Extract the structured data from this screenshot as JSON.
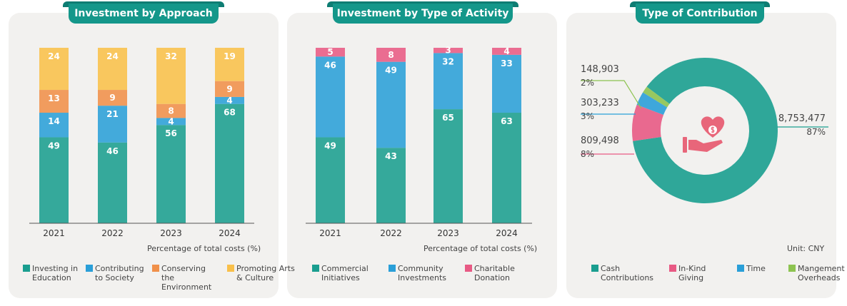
{
  "chart_data": [
    {
      "type": "bar",
      "stacked": true,
      "title": "Investment by Approach",
      "categories": [
        "2021",
        "2022",
        "2023",
        "2024"
      ],
      "ylabel": "Percentage of total costs (%)",
      "ylim": [
        0,
        100
      ],
      "legend": "bottom",
      "series": [
        {
          "name": "Investing in Education",
          "color": "#1a9e8f",
          "values": [
            49,
            46,
            56,
            68
          ]
        },
        {
          "name": "Contributing to Society",
          "color": "#2a9fd8",
          "values": [
            14,
            21,
            4,
            4
          ]
        },
        {
          "name": "Conserving the Environment",
          "color": "#f0904a",
          "values": [
            13,
            9,
            8,
            9
          ]
        },
        {
          "name": "Promoting Arts & Culture",
          "color": "#f9c04a",
          "values": [
            24,
            24,
            32,
            19
          ]
        }
      ]
    },
    {
      "type": "bar",
      "stacked": true,
      "title": "Investment by Type of Activity",
      "categories": [
        "2021",
        "2022",
        "2023",
        "2024"
      ],
      "ylabel": "Percentage of total costs (%)",
      "ylim": [
        0,
        100
      ],
      "legend": "bottom",
      "series": [
        {
          "name": "Commercial Initiatives",
          "color": "#1a9e8f",
          "values": [
            49,
            43,
            65,
            63
          ]
        },
        {
          "name": "Community Investments",
          "color": "#2a9fd8",
          "values": [
            46,
            49,
            32,
            33
          ]
        },
        {
          "name": "Charitable Donation",
          "color": "#e85a84",
          "values": [
            5,
            8,
            3,
            4
          ]
        }
      ]
    },
    {
      "type": "pie",
      "donut": true,
      "title": "Type of Contribution",
      "unit": "Unit: CNY",
      "legend": "bottom",
      "center_icon": "hand-heart-dollar-icon",
      "slices": [
        {
          "name": "Cash Contributions",
          "color": "#1a9e8f",
          "value": 8753477,
          "label": "8,753,477",
          "percent": "87%"
        },
        {
          "name": "In-Kind Giving",
          "color": "#e85a84",
          "value": 809498,
          "label": "809,498",
          "percent": "8%"
        },
        {
          "name": "Time",
          "color": "#2a9fd8",
          "value": 303233,
          "label": "303,233",
          "percent": "3%"
        },
        {
          "name": "Mangement Overheads",
          "color": "#8dc350",
          "value": 148903,
          "label": "148,903",
          "percent": "2%"
        }
      ]
    }
  ]
}
